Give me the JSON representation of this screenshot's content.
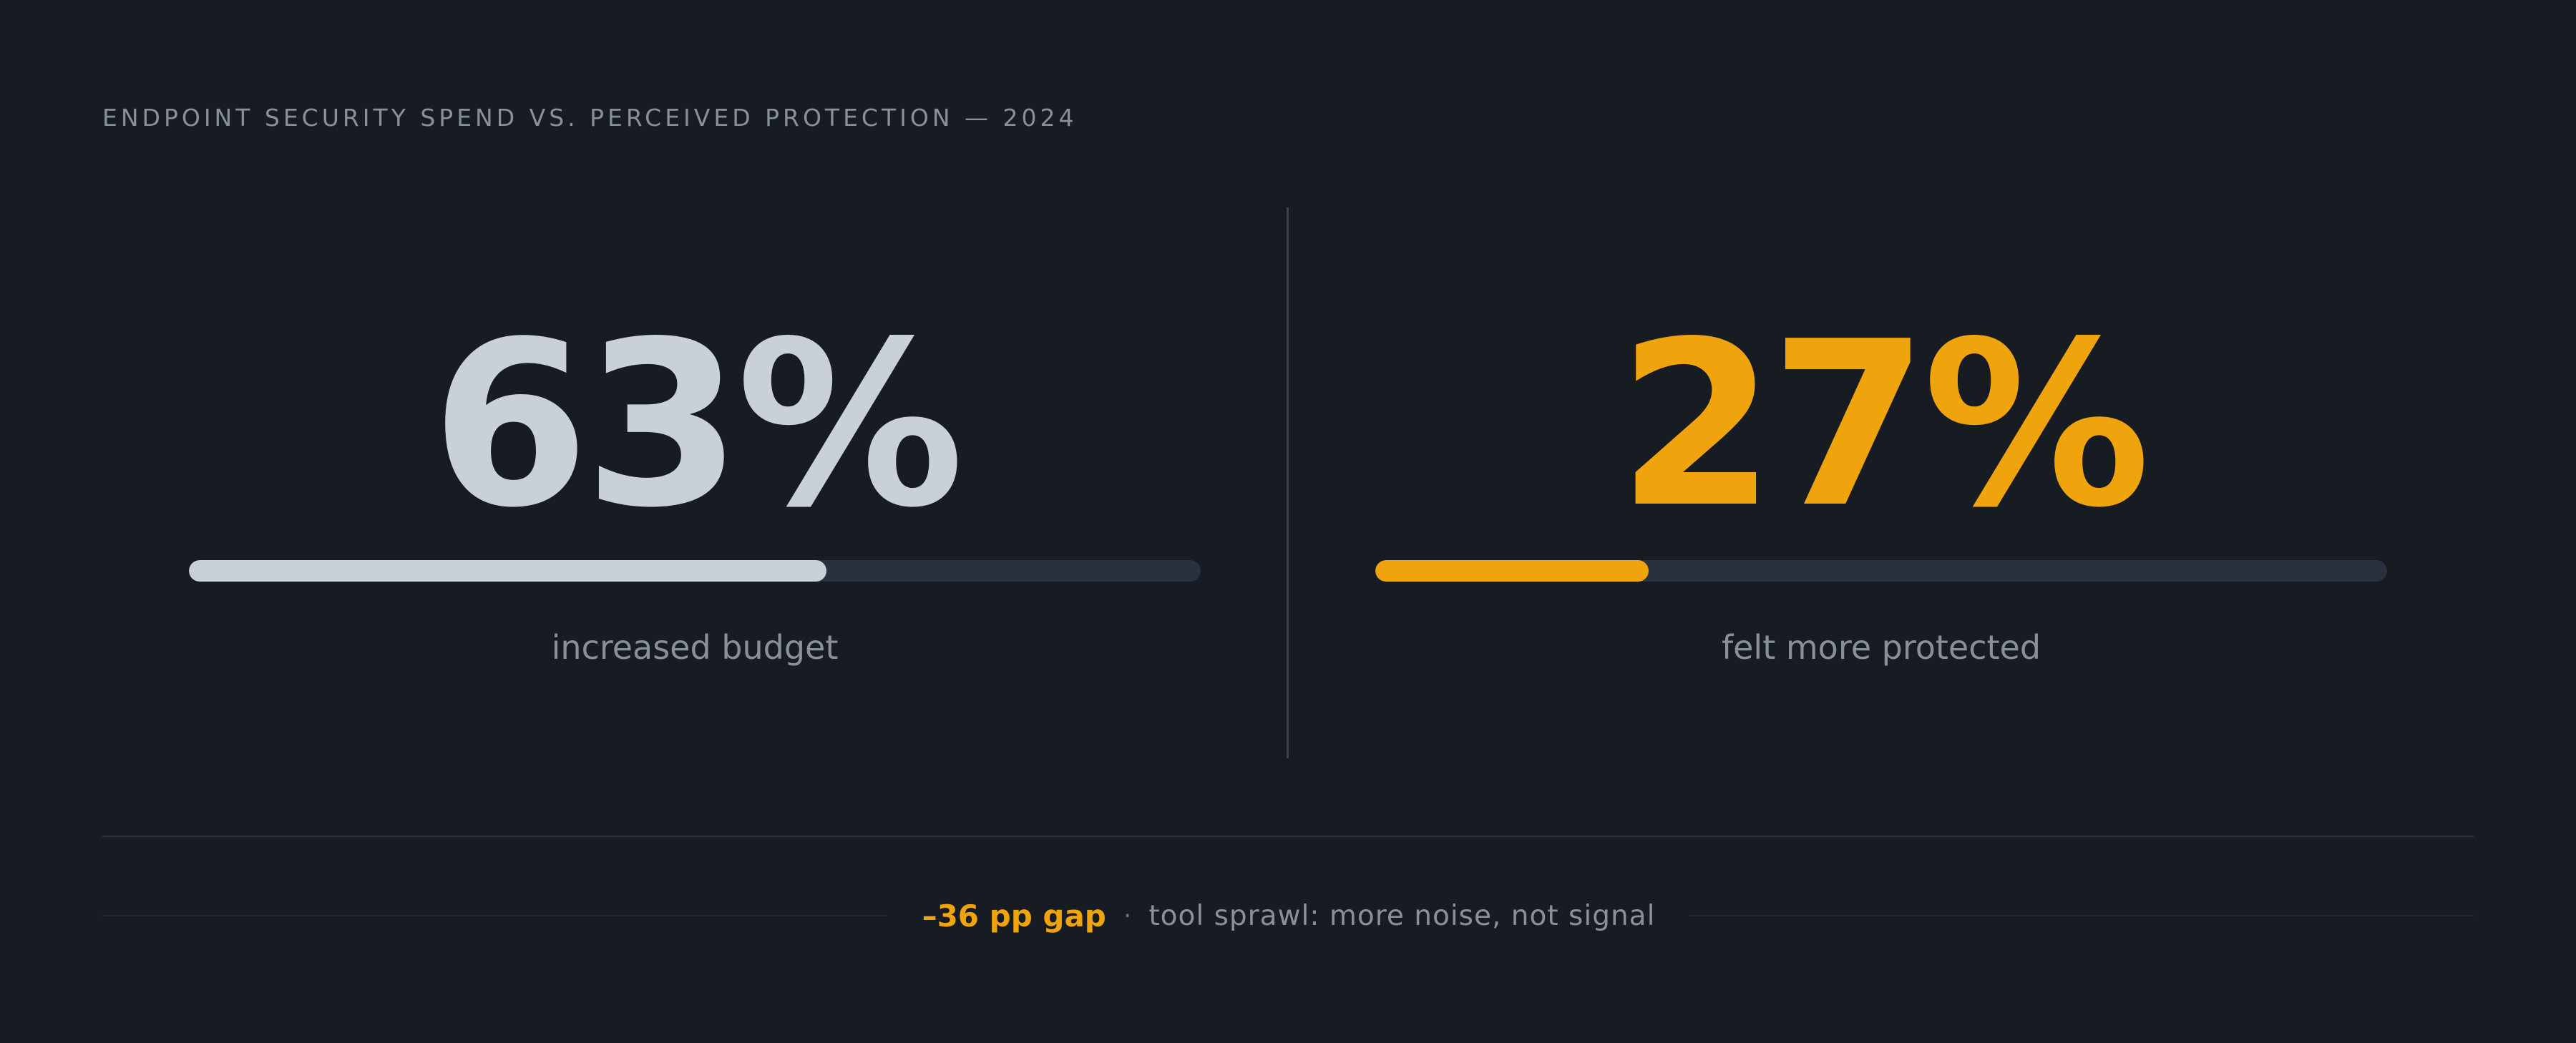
{
  "title": "ENDPOINT SECURITY SPEND VS. PERCEIVED PROTECTION — 2024",
  "colors": {
    "background": "#171b22",
    "neutral": "#c9d0d7",
    "accent": "#efa40d",
    "track": "#2a303e",
    "muted_text": "#8a9099"
  },
  "chart_data": {
    "type": "bar",
    "title": "ENDPOINT SECURITY SPEND VS. PERCEIVED PROTECTION — 2024",
    "categories": [
      "increased budget",
      "felt more protected"
    ],
    "values": [
      63,
      27
    ],
    "unit": "%",
    "ylim": [
      0,
      100
    ],
    "stats": [
      {
        "value_label": "63%",
        "value": 63,
        "label": "increased budget",
        "color": "#c9d0d7"
      },
      {
        "value_label": "27%",
        "value": 27,
        "label": "felt more protected",
        "color": "#efa40d"
      }
    ],
    "annotation": {
      "gap": "–36 pp gap",
      "separator": "·",
      "note": "tool sprawl: more noise, not signal"
    }
  }
}
